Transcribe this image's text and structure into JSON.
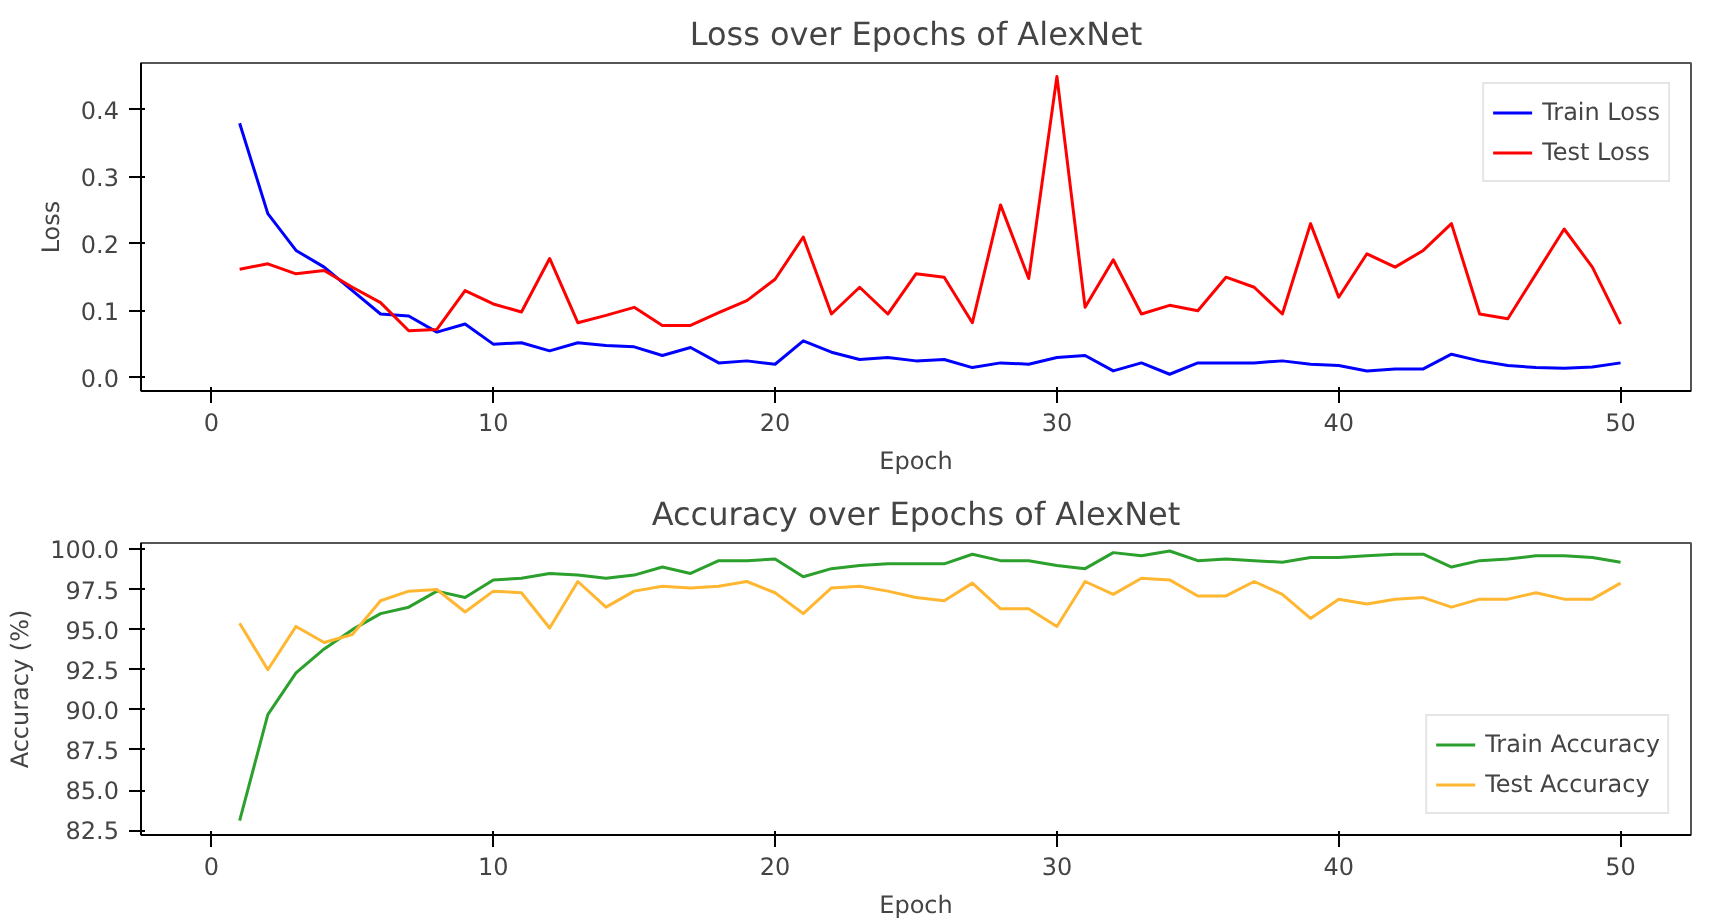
{
  "chart_data": [
    {
      "type": "line",
      "title": "Loss over Epochs of AlexNet",
      "xlabel": "Epoch",
      "ylabel": "Loss",
      "x": [
        1,
        2,
        3,
        4,
        5,
        6,
        7,
        8,
        9,
        10,
        11,
        12,
        13,
        14,
        15,
        16,
        17,
        18,
        19,
        20,
        21,
        22,
        23,
        24,
        25,
        26,
        27,
        28,
        29,
        30,
        31,
        32,
        33,
        34,
        35,
        36,
        37,
        38,
        39,
        40,
        41,
        42,
        43,
        44,
        45,
        46,
        47,
        48,
        49,
        50
      ],
      "series": [
        {
          "name": "Train Loss",
          "color": "#0000ff",
          "values": [
            0.38,
            0.245,
            0.19,
            0.165,
            0.13,
            0.095,
            0.092,
            0.068,
            0.08,
            0.05,
            0.052,
            0.04,
            0.052,
            0.048,
            0.046,
            0.033,
            0.045,
            0.022,
            0.025,
            0.02,
            0.055,
            0.038,
            0.027,
            0.03,
            0.025,
            0.027,
            0.015,
            0.022,
            0.02,
            0.03,
            0.033,
            0.01,
            0.022,
            0.005,
            0.022,
            0.022,
            0.022,
            0.025,
            0.02,
            0.018,
            0.01,
            0.013,
            0.013,
            0.035,
            0.025,
            0.018,
            0.015,
            0.014,
            0.016,
            0.022
          ]
        },
        {
          "name": "Test Loss",
          "color": "#ff0000",
          "values": [
            0.162,
            0.17,
            0.155,
            0.16,
            0.135,
            0.112,
            0.07,
            0.072,
            0.13,
            0.11,
            0.098,
            0.178,
            0.082,
            0.093,
            0.105,
            0.078,
            0.078,
            0.097,
            0.115,
            0.147,
            0.21,
            0.095,
            0.135,
            0.095,
            0.155,
            0.15,
            0.082,
            0.258,
            0.148,
            0.45,
            0.105,
            0.176,
            0.095,
            0.108,
            0.1,
            0.15,
            0.135,
            0.095,
            0.23,
            0.12,
            0.185,
            0.165,
            0.19,
            0.23,
            0.095,
            0.088,
            0.155,
            0.222,
            0.165,
            0.08
          ]
        }
      ],
      "xlim": [
        -2.5,
        52.5
      ],
      "xticks": [
        0,
        10,
        20,
        30,
        40,
        50
      ],
      "ylim": [
        -0.02,
        0.47
      ],
      "yticks": [
        {
          "value": 0,
          "label": "0.0"
        },
        0.1,
        0.2,
        0.3,
        0.4
      ],
      "legend": "top right",
      "grid": false
    },
    {
      "type": "line",
      "title": "Accuracy over Epochs of AlexNet",
      "xlabel": "Epoch",
      "ylabel": "Accuracy (%)",
      "x": [
        1,
        2,
        3,
        4,
        5,
        6,
        7,
        8,
        9,
        10,
        11,
        12,
        13,
        14,
        15,
        16,
        17,
        18,
        19,
        20,
        21,
        22,
        23,
        24,
        25,
        26,
        27,
        28,
        29,
        30,
        31,
        32,
        33,
        34,
        35,
        36,
        37,
        38,
        39,
        40,
        41,
        42,
        43,
        44,
        45,
        46,
        47,
        48,
        49,
        50
      ],
      "series": [
        {
          "name": "Train Accuracy",
          "color": "#2ca02c",
          "values": [
            83.1,
            89.7,
            92.3,
            93.8,
            95.0,
            96.0,
            96.4,
            97.4,
            97.0,
            98.1,
            98.2,
            98.5,
            98.4,
            98.2,
            98.4,
            98.9,
            98.5,
            99.3,
            99.3,
            99.4,
            98.3,
            98.8,
            99.0,
            99.1,
            99.1,
            99.1,
            99.7,
            99.3,
            99.3,
            99.0,
            98.8,
            99.8,
            99.6,
            99.9,
            99.3,
            99.4,
            99.3,
            99.2,
            99.5,
            99.5,
            99.6,
            99.7,
            99.7,
            98.9,
            99.3,
            99.4,
            99.6,
            99.6,
            99.5,
            99.2
          ]
        },
        {
          "name": "Test Accuracy",
          "color": "#ffb732",
          "values": [
            95.4,
            92.5,
            95.2,
            94.2,
            94.7,
            96.8,
            97.4,
            97.5,
            96.1,
            97.4,
            97.3,
            95.1,
            98.0,
            96.4,
            97.4,
            97.7,
            97.6,
            97.7,
            98.0,
            97.3,
            96.0,
            97.6,
            97.7,
            97.4,
            97.0,
            96.8,
            97.9,
            96.3,
            96.3,
            95.2,
            98.0,
            97.2,
            98.2,
            98.1,
            97.1,
            97.1,
            98.0,
            97.2,
            95.7,
            96.9,
            96.6,
            96.9,
            97.0,
            96.4,
            96.9,
            96.9,
            97.3,
            96.9,
            96.9,
            97.9
          ]
        }
      ],
      "xlim": [
        -2.5,
        52.5
      ],
      "xticks": [
        0,
        10,
        20,
        30,
        40,
        50
      ],
      "ylim": [
        82.2,
        100.4
      ],
      "yticks": [
        {
          "value": 82.5,
          "label": "82.5"
        },
        {
          "value": 85,
          "label": "85.0"
        },
        {
          "value": 87.5,
          "label": "87.5"
        },
        {
          "value": 90,
          "label": "90.0"
        },
        {
          "value": 92.5,
          "label": "92.5"
        },
        {
          "value": 95,
          "label": "95.0"
        },
        {
          "value": 97.5,
          "label": "97.5"
        },
        {
          "value": 100,
          "label": "100.0"
        }
      ],
      "legend": "bottom right",
      "grid": false
    }
  ]
}
